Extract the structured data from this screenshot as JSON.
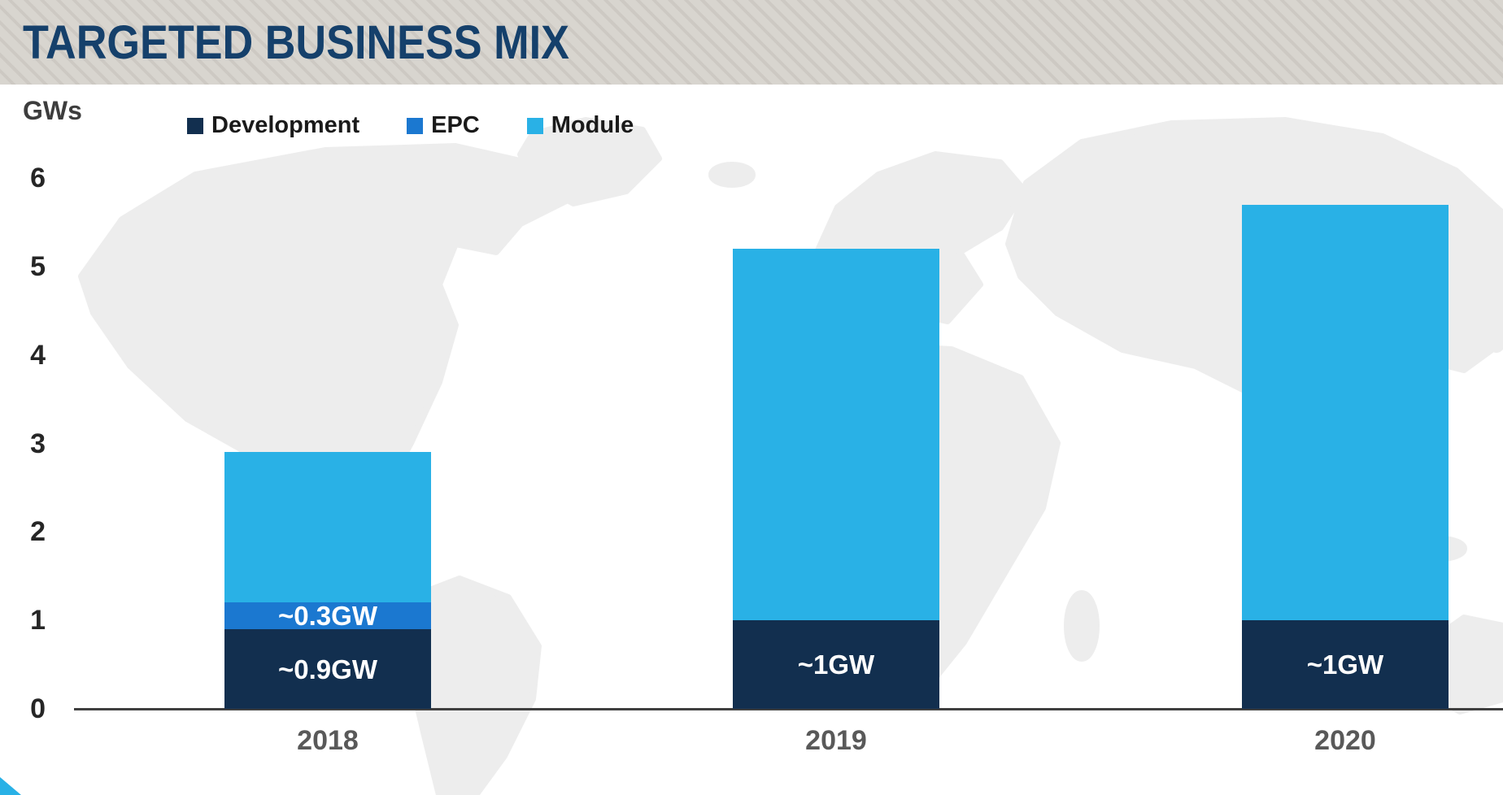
{
  "header": {
    "title": "TARGETED BUSINESS MIX"
  },
  "chart_data": {
    "type": "bar",
    "stacked": true,
    "title": "TARGETED BUSINESS MIX",
    "ylabel": "GWs",
    "xlabel": "",
    "categories": [
      "2018",
      "2019",
      "2020"
    ],
    "series": [
      {
        "name": "Development",
        "color": "#122f4f",
        "values": [
          0.9,
          1.0,
          1.0
        ],
        "segment_labels": [
          "~0.9GW",
          "~1GW",
          "~1GW"
        ]
      },
      {
        "name": "EPC",
        "color": "#1b78d0",
        "values": [
          0.3,
          0,
          0
        ],
        "segment_labels": [
          "~0.3GW",
          "",
          ""
        ]
      },
      {
        "name": "Module",
        "color": "#29b1e6",
        "values": [
          1.7,
          4.2,
          4.7
        ],
        "segment_labels": [
          "",
          "",
          ""
        ]
      }
    ],
    "ylim": [
      0,
      6
    ],
    "yticks": [
      0,
      1,
      2,
      3,
      4,
      5,
      6
    ],
    "legend_position": "top-left",
    "grid": false
  },
  "colors": {
    "title_text": "#15406b",
    "header_stripe_light": "#d8d5cf",
    "header_stripe_dark": "#cdc9c3",
    "axis_line": "#404040",
    "tick_text": "#262626",
    "category_text": "#595959",
    "legend_text": "#1a1a1a",
    "segment_label_text": "#ffffff",
    "map_fill": "#ededed",
    "corner_accent": "#29b1e6"
  }
}
